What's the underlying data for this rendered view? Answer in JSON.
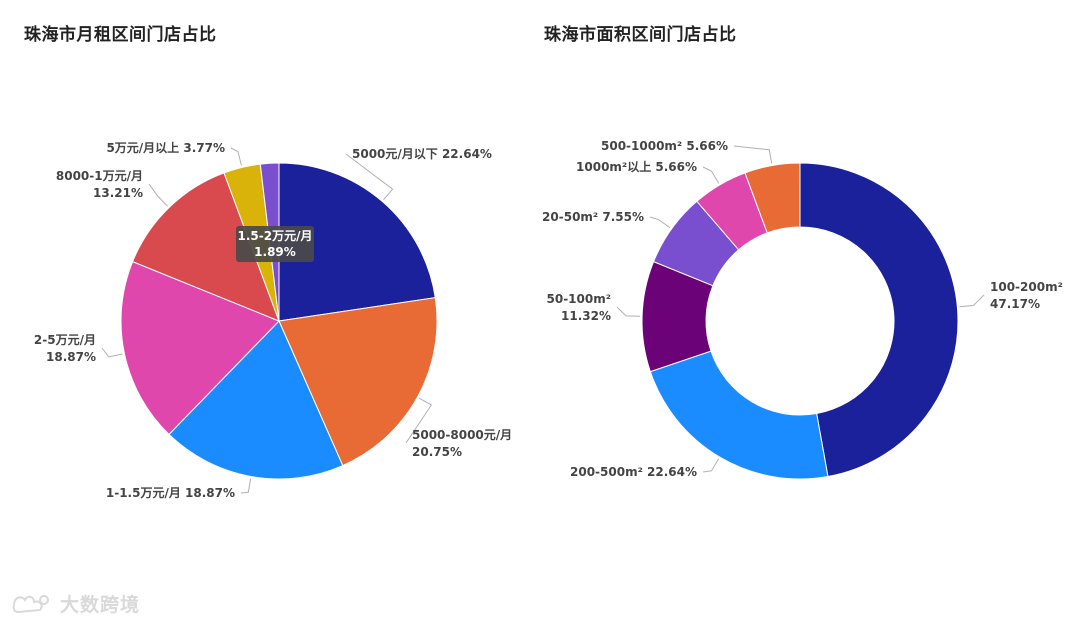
{
  "watermark": "大数跨境",
  "chart_data": [
    {
      "type": "pie",
      "title": "珠海市月租区间门店占比",
      "slices": [
        {
          "label": "5000元/月以下",
          "value": 22.64,
          "text": "5000元/月以下 22.64%",
          "color": "#1a219b"
        },
        {
          "label": "5000-8000元/月",
          "value": 20.75,
          "text": "5000-8000元/月|20.75%",
          "color": "#e86b36"
        },
        {
          "label": "1-1.5万元/月",
          "value": 18.87,
          "text": "1-1.5万元/月 18.87%",
          "color": "#1a8cff"
        },
        {
          "label": "2-5万元/月",
          "value": 18.87,
          "text": "2-5万元/月|18.87%",
          "color": "#e047ad"
        },
        {
          "label": "8000-1万元/月",
          "value": 13.21,
          "text": "8000-1万元/月|13.21%",
          "color": "#d94a4f"
        },
        {
          "label": "5万元/月以上",
          "value": 3.77,
          "text": "5万元/月以上 3.77%",
          "color": "#d9b30a"
        },
        {
          "label": "1.5-2万元/月",
          "value": 1.89,
          "text": "1.5-2万元/月|1.89%",
          "color": "#7a4fcf"
        }
      ],
      "tooltip": {
        "line1": "1.5-2万元/月",
        "line2": "1.89%"
      }
    },
    {
      "type": "pie",
      "title": "珠海市面积区间门店占比",
      "slices": [
        {
          "label": "100-200m²",
          "value": 47.17,
          "text": "100-200m²|47.17%",
          "color": "#1a219b"
        },
        {
          "label": "200-500m²",
          "value": 22.64,
          "text": "200-500m² 22.64%",
          "color": "#1a8cff"
        },
        {
          "label": "50-100m²",
          "value": 11.32,
          "text": "50-100m²|11.32%",
          "color": "#6b0278"
        },
        {
          "label": "20-50m²",
          "value": 7.55,
          "text": "20-50m² 7.55%",
          "color": "#7a4fcf"
        },
        {
          "label": "1000m²以上",
          "value": 5.66,
          "text": "1000m²以上 5.66%",
          "color": "#e047ad"
        },
        {
          "label": "500-1000m²",
          "value": 5.66,
          "text": "500-1000m² 5.66%",
          "color": "#e86b36"
        }
      ]
    }
  ]
}
